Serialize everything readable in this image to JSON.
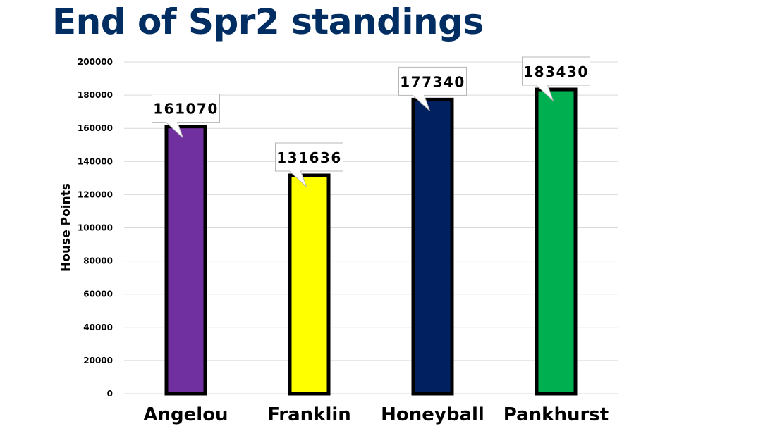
{
  "title": "End of Spr2 standings",
  "chart_data": {
    "type": "bar",
    "title": "End of Spr2 standings",
    "xlabel": "",
    "ylabel": "House Points",
    "categories": [
      "Angelou",
      "Franklin",
      "Honeyball",
      "Pankhurst"
    ],
    "values": [
      161070,
      131636,
      177340,
      183430
    ],
    "data_labels": [
      "161070",
      "131636",
      "177340",
      "183430"
    ],
    "colors": [
      "#7030a0",
      "#ffff00",
      "#002060",
      "#00b050"
    ],
    "ylim": [
      0,
      200000
    ],
    "yticks": [
      0,
      20000,
      40000,
      60000,
      80000,
      100000,
      120000,
      140000,
      160000,
      180000,
      200000
    ],
    "ytick_labels": [
      "0",
      "20000",
      "40000",
      "60000",
      "80000",
      "100000",
      "120000",
      "140000",
      "160000",
      "180000",
      "200000"
    ],
    "grid": true,
    "legend": "none"
  }
}
